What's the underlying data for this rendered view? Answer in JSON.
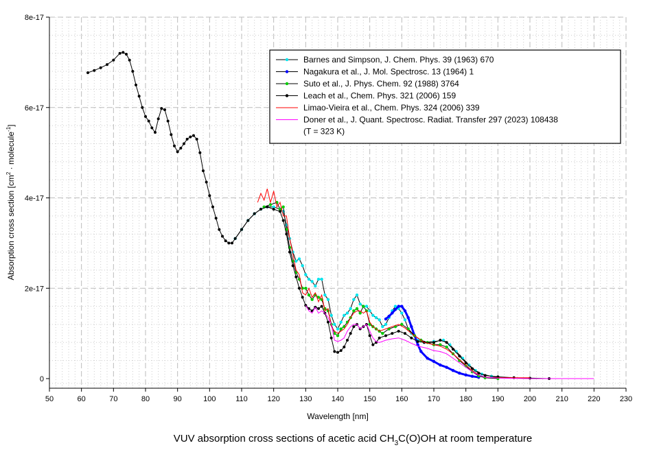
{
  "chart_data": {
    "type": "line",
    "title": {
      "pre": "VUV absorption cross sections of acetic acid CH",
      "sub": "3",
      "post": "C(O)OH at room temperature"
    },
    "xlabel": "Wavelength [nm]",
    "ylabel": {
      "pre": "Absorption cross section [cm",
      "sup1": "2",
      "mid": " · molecule",
      "sup2": "-1",
      "post": "]"
    },
    "xlim": [
      50,
      230
    ],
    "ylim": [
      0,
      8e-17
    ],
    "y_unit_scale": 1e-17,
    "xticks": [
      "50",
      "60",
      "70",
      "80",
      "90",
      "100",
      "110",
      "120",
      "130",
      "140",
      "150",
      "160",
      "170",
      "180",
      "190",
      "200",
      "210",
      "220",
      "230"
    ],
    "yticks": [
      {
        "v": 0,
        "label": "0"
      },
      {
        "v": 2,
        "label": "2e-17"
      },
      {
        "v": 4,
        "label": "4e-17"
      },
      {
        "v": 6,
        "label": "6e-17"
      },
      {
        "v": 8,
        "label": "8e-17"
      }
    ],
    "grid": true,
    "legend_placement": "top-right",
    "series": [
      {
        "name": "Barnes and Simpson, J. Chem. Phys. 39 (1963) 670",
        "color": "#00e5ee",
        "marker": true,
        "x": [
          108,
          110,
          112,
          114,
          116,
          118,
          120,
          122,
          123,
          124,
          125,
          126,
          127,
          128,
          129,
          130,
          131,
          132,
          133,
          134,
          135,
          136,
          137,
          138,
          139,
          140,
          141,
          142,
          143,
          144,
          145,
          146,
          147,
          148,
          149,
          150,
          151,
          152,
          153,
          154,
          155,
          156,
          157,
          158,
          159,
          160,
          161,
          162,
          163,
          165,
          167,
          170,
          173,
          175,
          177,
          179,
          181,
          183,
          185,
          188,
          190
        ],
        "y": [
          3.1,
          3.3,
          3.5,
          3.65,
          3.75,
          3.8,
          3.8,
          3.75,
          3.7,
          3.4,
          3.1,
          2.8,
          2.6,
          2.65,
          2.5,
          2.3,
          2.2,
          2.15,
          2.05,
          2.2,
          2.2,
          1.85,
          1.75,
          1.4,
          1.2,
          1.1,
          1.25,
          1.4,
          1.45,
          1.55,
          1.75,
          1.85,
          1.65,
          1.6,
          1.6,
          1.5,
          1.4,
          1.35,
          1.3,
          1.15,
          1.2,
          1.35,
          1.5,
          1.6,
          1.55,
          1.45,
          1.3,
          1.1,
          1.0,
          0.85,
          0.8,
          0.82,
          0.85,
          0.75,
          0.6,
          0.45,
          0.3,
          0.18,
          0.1,
          0.05,
          0.03
        ]
      },
      {
        "name": "Nagakura et al., J. Mol. Spectrosc. 13 (1964) 1",
        "color": "#0000ff",
        "marker": true,
        "x": [
          155,
          156,
          157,
          158,
          159,
          160,
          161,
          162,
          163,
          164,
          165,
          166,
          168,
          170,
          172,
          174,
          176,
          178,
          180,
          182,
          184
        ],
        "y": [
          1.32,
          1.38,
          1.45,
          1.53,
          1.6,
          1.6,
          1.5,
          1.35,
          1.15,
          0.95,
          0.75,
          0.6,
          0.45,
          0.38,
          0.3,
          0.25,
          0.18,
          0.12,
          0.08,
          0.05,
          0.03
        ]
      },
      {
        "name": "Suto et al., J. Phys. Chem. 92 (1988) 3764",
        "color": "#00cc00",
        "marker": true,
        "x": [
          117,
          119,
          121,
          122,
          123,
          124,
          125,
          126,
          127,
          128,
          129,
          130,
          131,
          132,
          133,
          134,
          135,
          136,
          137,
          138,
          139,
          140,
          141,
          142,
          143,
          144,
          145,
          146,
          147,
          148,
          149,
          150,
          151,
          152,
          153,
          154,
          156,
          158,
          160,
          162,
          164,
          166,
          168,
          170,
          172,
          174,
          176,
          178,
          180,
          182,
          184,
          186,
          190
        ],
        "y": [
          3.8,
          3.85,
          3.9,
          3.75,
          3.8,
          3.3,
          2.9,
          2.6,
          2.35,
          2.2,
          2.0,
          2.0,
          1.85,
          1.75,
          1.85,
          1.8,
          1.75,
          1.55,
          1.5,
          1.2,
          1.0,
          0.95,
          1.1,
          1.15,
          1.25,
          1.35,
          1.5,
          1.55,
          1.45,
          1.6,
          1.5,
          1.2,
          1.15,
          1.1,
          1.05,
          1.0,
          1.1,
          1.15,
          1.2,
          1.1,
          0.95,
          0.85,
          0.8,
          0.75,
          0.75,
          0.7,
          0.55,
          0.4,
          0.28,
          0.15,
          0.06,
          0.02,
          0.0
        ]
      },
      {
        "name": "Leach et al., Chem. Phys. 321 (2006) 159",
        "color": "#000000",
        "marker": true,
        "x": [
          62,
          64,
          66,
          68,
          70,
          72,
          73,
          74,
          75,
          76,
          77,
          78,
          79,
          80,
          81,
          82,
          83,
          84,
          85,
          86,
          87,
          88,
          89,
          90,
          91,
          92,
          93,
          94,
          95,
          96,
          97,
          98,
          99,
          100,
          101,
          102,
          103,
          104,
          105,
          106,
          107,
          108,
          110,
          112,
          114,
          116,
          118,
          120,
          122,
          123,
          124,
          125,
          126,
          127,
          128,
          129,
          130,
          131,
          132,
          133,
          134,
          135,
          136,
          137,
          138,
          139,
          140,
          141,
          142,
          143,
          144,
          145,
          146,
          147,
          148,
          149,
          150,
          151,
          152,
          153,
          155,
          157,
          159,
          161,
          163,
          165,
          167,
          170,
          172,
          174,
          176,
          178,
          180,
          182,
          184,
          186,
          190,
          195,
          200,
          206
        ],
        "y": [
          6.77,
          6.82,
          6.88,
          6.95,
          7.05,
          7.2,
          7.22,
          7.18,
          7.05,
          6.8,
          6.5,
          6.25,
          6.0,
          5.8,
          5.7,
          5.55,
          5.45,
          5.75,
          5.98,
          5.95,
          5.7,
          5.4,
          5.15,
          5.02,
          5.1,
          5.2,
          5.3,
          5.35,
          5.38,
          5.3,
          5.0,
          4.6,
          4.35,
          4.05,
          3.8,
          3.55,
          3.3,
          3.15,
          3.05,
          3.0,
          3.0,
          3.1,
          3.3,
          3.5,
          3.65,
          3.75,
          3.8,
          3.75,
          3.7,
          3.5,
          3.2,
          2.8,
          2.5,
          2.25,
          2.0,
          1.8,
          1.62,
          1.55,
          1.5,
          1.58,
          1.55,
          1.6,
          1.45,
          1.25,
          0.9,
          0.6,
          0.58,
          0.62,
          0.7,
          0.85,
          1.0,
          1.15,
          1.2,
          1.1,
          1.15,
          1.2,
          0.95,
          0.75,
          0.8,
          0.9,
          0.95,
          1.0,
          1.05,
          1.0,
          0.9,
          0.82,
          0.8,
          0.8,
          0.85,
          0.8,
          0.65,
          0.5,
          0.35,
          0.22,
          0.12,
          0.07,
          0.04,
          0.02,
          0.01,
          0.0
        ]
      },
      {
        "name": "Limao-Vieira et al., Chem. Phys. 324 (2006) 339",
        "color": "#ff0000",
        "marker": false,
        "x": [
          115,
          116,
          117,
          118,
          119,
          120,
          121,
          122,
          123,
          124,
          125,
          126,
          127,
          128,
          129,
          130,
          131,
          132,
          133,
          134,
          135,
          136,
          137,
          138,
          139,
          140,
          141,
          142,
          143,
          144,
          145,
          146,
          147,
          148,
          149,
          150,
          151,
          152,
          153,
          155,
          157,
          159,
          161,
          163,
          165,
          167,
          170,
          172,
          174,
          176,
          178,
          180,
          182,
          184,
          186,
          190,
          200
        ],
        "y": [
          3.9,
          4.1,
          3.95,
          4.2,
          3.9,
          4.15,
          3.8,
          3.9,
          3.6,
          3.6,
          3.1,
          2.75,
          2.4,
          2.3,
          1.9,
          1.85,
          2.0,
          1.8,
          1.9,
          1.7,
          1.85,
          1.5,
          1.55,
          1.15,
          1.05,
          1.0,
          1.05,
          1.1,
          1.2,
          1.35,
          1.45,
          1.5,
          1.5,
          1.45,
          1.5,
          1.25,
          1.15,
          1.1,
          1.05,
          1.1,
          1.15,
          1.2,
          1.12,
          1.0,
          0.9,
          0.8,
          0.75,
          0.72,
          0.65,
          0.55,
          0.42,
          0.3,
          0.18,
          0.08,
          0.03,
          0.02,
          0.02
        ]
      },
      {
        "name": "Doner et al., J. Quant. Spectrosc. Radiat. Transfer 297 (2023) 108438",
        "name2": "(T = 323 K)",
        "color": "#ff00ff",
        "marker": false,
        "x": [
          130,
          131,
          132,
          133,
          134,
          135,
          136,
          137,
          138,
          139,
          140,
          141,
          142,
          143,
          144,
          145,
          146,
          147,
          148,
          149,
          150,
          151,
          152,
          153,
          155,
          157,
          159,
          161,
          163,
          165,
          168,
          170,
          172,
          174,
          176,
          178,
          180,
          182,
          184,
          186,
          190,
          200,
          220
        ],
        "y": [
          1.62,
          1.5,
          1.45,
          1.58,
          1.45,
          1.5,
          1.45,
          1.35,
          1.2,
          0.85,
          0.82,
          0.85,
          0.9,
          1.05,
          1.15,
          1.2,
          1.2,
          1.1,
          1.15,
          1.2,
          1.05,
          0.9,
          0.82,
          0.8,
          0.85,
          0.88,
          0.9,
          0.85,
          0.78,
          0.72,
          0.67,
          0.62,
          0.6,
          0.55,
          0.45,
          0.35,
          0.25,
          0.15,
          0.08,
          0.03,
          0.01,
          0.0,
          0.0
        ]
      }
    ]
  }
}
